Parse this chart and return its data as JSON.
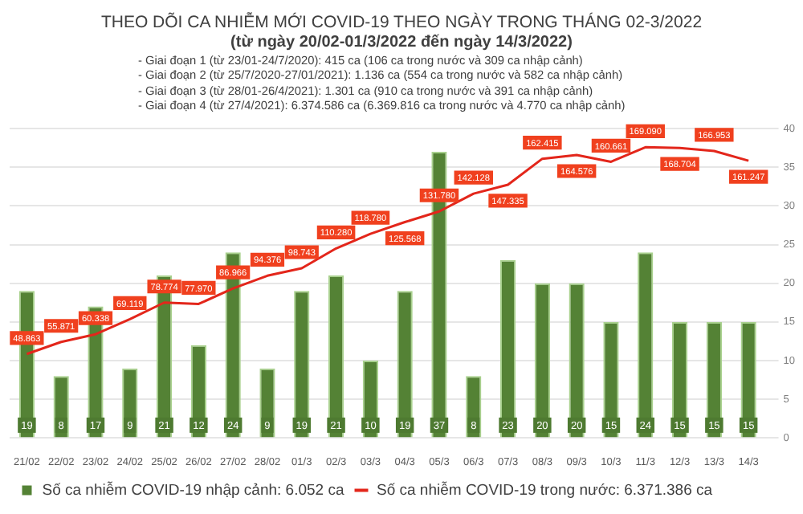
{
  "chart_data": {
    "type": "bar",
    "title": "THEO DÕI CA NHIỄM MỚI COVID-19 THEO NGÀY TRONG THÁNG 02-3/2022",
    "subtitle": "(từ ngày 20/02-01/3/2022 đến ngày 14/3/2022)",
    "annotations": [
      "- Giai đoạn 1 (từ 23/01-24/7/2020): 415 ca (106 ca trong nước và 309 ca nhập cảnh)",
      "- Giai đoạn 2 (từ 25/7/2020-27/01/2021): 1.136 ca (554 ca trong nước và 582 ca nhập cảnh)",
      "- Giai đoạn 3 (từ 28/01-26/4/2021): 1.301 ca (910 ca trong nước và 391 ca nhập cảnh)",
      "- Giai đoạn 4 (từ 27/4/2021): 6.374.586 ca (6.369.816 ca trong nước và 4.770 ca nhập cảnh)"
    ],
    "categories": [
      "21/02",
      "22/02",
      "23/02",
      "24/02",
      "25/02",
      "26/02",
      "27/02",
      "28/02",
      "01/3",
      "02/3",
      "03/3",
      "04/3",
      "05/3",
      "06/3",
      "07/3",
      "08/3",
      "09/3",
      "10/3",
      "11/3",
      "12/3",
      "13/3",
      "14/3"
    ],
    "series": [
      {
        "name": "Số ca nhiễm COVID-19 nhập cảnh: 6.052 ca",
        "type": "bar",
        "axis": "y2",
        "color": "#548235",
        "values": [
          19,
          8,
          17,
          9,
          21,
          12,
          24,
          9,
          19,
          21,
          10,
          19,
          37,
          8,
          23,
          20,
          20,
          15,
          24,
          15,
          15,
          15
        ]
      },
      {
        "name": "Số ca nhiễm COVID-19 trong nước: 6.371.386 ca",
        "type": "line",
        "axis": "y",
        "color": "#e3261b",
        "values": [
          48863,
          55871,
          60338,
          69119,
          78774,
          77970,
          86966,
          94376,
          98743,
          110280,
          118780,
          125568,
          131780,
          142128,
          147335,
          162415,
          164576,
          160661,
          169090,
          168704,
          166953,
          161247
        ],
        "value_labels": [
          "48.863",
          "55.871",
          "60.338",
          "69.119",
          "78.774",
          "77.970",
          "86.966",
          "94.376",
          "98.743",
          "110.280",
          "118.780",
          "125.568",
          "131.780",
          "142.128",
          "147.335",
          "162.415",
          "164.576",
          "160.661",
          "169.090",
          "168.704",
          "166.953",
          "161.247"
        ]
      }
    ],
    "y2lim": [
      0,
      40
    ],
    "y2ticks": [
      0,
      5,
      10,
      15,
      20,
      25,
      30,
      35,
      40
    ],
    "grid": "y",
    "data_labels": true,
    "legend": "bottom",
    "marker": "none"
  }
}
